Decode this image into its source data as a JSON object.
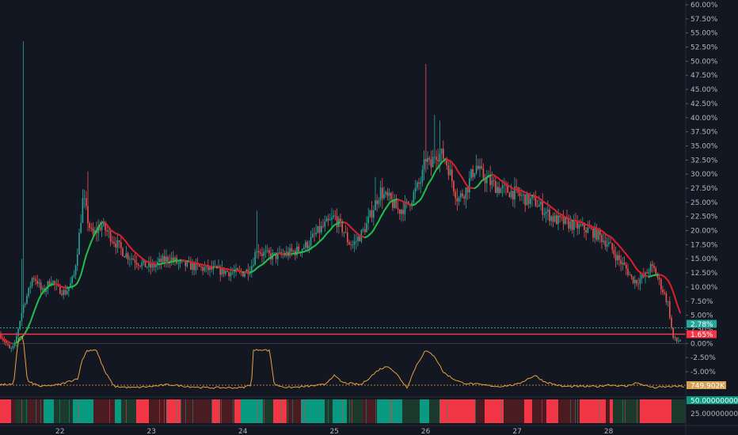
{
  "chart_data": {
    "type": "candlestick",
    "y_axis": {
      "unit": "%",
      "ticks": [
        "60.00%",
        "57.50%",
        "55.00%",
        "52.50%",
        "50.00%",
        "47.50%",
        "45.00%",
        "42.50%",
        "40.00%",
        "37.50%",
        "35.00%",
        "32.50%",
        "30.00%",
        "27.50%",
        "25.00%",
        "22.50%",
        "20.00%",
        "17.50%",
        "15.00%",
        "12.50%",
        "10.00%",
        "7.50%",
        "5.00%",
        "2.50%",
        "0.00%",
        "-2.50%",
        "-5.00%"
      ],
      "ylim": [
        -5,
        60
      ]
    },
    "x_axis": {
      "ticks": [
        "22",
        "23",
        "24",
        "25",
        "26",
        "27",
        "28"
      ],
      "xlim": [
        21.35,
        28.85
      ]
    },
    "price_path": [
      [
        21.35,
        1.5
      ],
      [
        21.4,
        0.2
      ],
      [
        21.45,
        -1.2
      ],
      [
        21.5,
        -0.5
      ],
      [
        21.55,
        3.5
      ],
      [
        21.6,
        7
      ],
      [
        21.65,
        9
      ],
      [
        21.7,
        12
      ],
      [
        21.75,
        11
      ],
      [
        21.8,
        9
      ],
      [
        21.85,
        10
      ],
      [
        21.9,
        11.5
      ],
      [
        21.95,
        10
      ],
      [
        22.0,
        9.5
      ],
      [
        22.05,
        9
      ],
      [
        22.1,
        10
      ],
      [
        22.15,
        12
      ],
      [
        22.2,
        18
      ],
      [
        22.25,
        26
      ],
      [
        22.3,
        22
      ],
      [
        22.35,
        19
      ],
      [
        22.4,
        20
      ],
      [
        22.45,
        21
      ],
      [
        22.5,
        20
      ],
      [
        22.55,
        19
      ],
      [
        22.6,
        18
      ],
      [
        22.7,
        16
      ],
      [
        22.8,
        15
      ],
      [
        22.9,
        14
      ],
      [
        23.0,
        13.5
      ],
      [
        23.1,
        14.5
      ],
      [
        23.2,
        15.2
      ],
      [
        23.3,
        14
      ],
      [
        23.4,
        13.8
      ],
      [
        23.5,
        13.5
      ],
      [
        23.6,
        13.2
      ],
      [
        23.7,
        13
      ],
      [
        23.8,
        12.8
      ],
      [
        23.9,
        12.5
      ],
      [
        24.0,
        12.5
      ],
      [
        24.05,
        13
      ],
      [
        24.1,
        14
      ],
      [
        24.15,
        17
      ],
      [
        24.2,
        16
      ],
      [
        24.3,
        15.5
      ],
      [
        24.4,
        15.5
      ],
      [
        24.5,
        16
      ],
      [
        24.6,
        16.5
      ],
      [
        24.7,
        17.5
      ],
      [
        24.8,
        19.5
      ],
      [
        24.9,
        21
      ],
      [
        24.95,
        21.5
      ],
      [
        25.0,
        22.5
      ],
      [
        25.05,
        21
      ],
      [
        25.1,
        20
      ],
      [
        25.15,
        18
      ],
      [
        25.2,
        17.5
      ],
      [
        25.25,
        18.5
      ],
      [
        25.3,
        19.5
      ],
      [
        25.35,
        21
      ],
      [
        25.4,
        23
      ],
      [
        25.45,
        25
      ],
      [
        25.5,
        27
      ],
      [
        25.55,
        26
      ],
      [
        25.6,
        25.5
      ],
      [
        25.65,
        24.5
      ],
      [
        25.7,
        23.5
      ],
      [
        25.75,
        24
      ],
      [
        25.8,
        24.5
      ],
      [
        25.85,
        26
      ],
      [
        25.9,
        27.5
      ],
      [
        25.95,
        29
      ],
      [
        26.0,
        33
      ],
      [
        26.05,
        31
      ],
      [
        26.1,
        34
      ],
      [
        26.15,
        33.5
      ],
      [
        26.2,
        33
      ],
      [
        26.25,
        31
      ],
      [
        26.3,
        28
      ],
      [
        26.35,
        25.5
      ],
      [
        26.4,
        26.5
      ],
      [
        26.45,
        27.5
      ],
      [
        26.5,
        30
      ],
      [
        26.55,
        31.5
      ],
      [
        26.6,
        30
      ],
      [
        26.7,
        28.5
      ],
      [
        26.8,
        27.5
      ],
      [
        26.9,
        27
      ],
      [
        27.0,
        26.5
      ],
      [
        27.1,
        25.5
      ],
      [
        27.2,
        25
      ],
      [
        27.3,
        23.5
      ],
      [
        27.4,
        22
      ],
      [
        27.5,
        21.5
      ],
      [
        27.6,
        21
      ],
      [
        27.7,
        20.5
      ],
      [
        27.8,
        20
      ],
      [
        27.9,
        19
      ],
      [
        28.0,
        17.5
      ],
      [
        28.1,
        15
      ],
      [
        28.2,
        13
      ],
      [
        28.25,
        11.5
      ],
      [
        28.3,
        11
      ],
      [
        28.4,
        12
      ],
      [
        28.45,
        13.5
      ],
      [
        28.5,
        13
      ],
      [
        28.55,
        11
      ],
      [
        28.6,
        9
      ],
      [
        28.65,
        7
      ],
      [
        28.7,
        1
      ],
      [
        28.75,
        0.3
      ],
      [
        28.8,
        1
      ],
      [
        28.85,
        2.78
      ]
    ],
    "spikes": [
      [
        21.6,
        53.5
      ],
      [
        21.58,
        15
      ],
      [
        22.3,
        30.5
      ],
      [
        24.15,
        23.5
      ],
      [
        25.45,
        29.5
      ],
      [
        26.0,
        49.5
      ],
      [
        26.1,
        40.5
      ],
      [
        26.15,
        39.5
      ]
    ],
    "price_levels": [
      {
        "value": 2.78,
        "label": "2.78%",
        "color": "#26a69a"
      },
      {
        "value": 1.65,
        "label": "1.65%",
        "color": "#f23645"
      }
    ],
    "oscillator": {
      "current_label": "749.902K",
      "path": [
        [
          21.35,
          0.15
        ],
        [
          21.5,
          0.15
        ],
        [
          21.55,
          0.9
        ],
        [
          21.6,
          0.95
        ],
        [
          21.65,
          0.2
        ],
        [
          21.8,
          0.12
        ],
        [
          22.0,
          0.15
        ],
        [
          22.2,
          0.25
        ],
        [
          22.25,
          0.55
        ],
        [
          22.3,
          0.7
        ],
        [
          22.4,
          0.72
        ],
        [
          22.5,
          0.35
        ],
        [
          22.6,
          0.12
        ],
        [
          22.8,
          0.1
        ],
        [
          23.0,
          0.12
        ],
        [
          23.2,
          0.15
        ],
        [
          23.4,
          0.12
        ],
        [
          23.6,
          0.1
        ],
        [
          23.8,
          0.1
        ],
        [
          24.0,
          0.1
        ],
        [
          24.1,
          0.15
        ],
        [
          24.12,
          0.7
        ],
        [
          24.2,
          0.72
        ],
        [
          24.3,
          0.7
        ],
        [
          24.35,
          0.15
        ],
        [
          24.5,
          0.1
        ],
        [
          24.7,
          0.12
        ],
        [
          24.9,
          0.15
        ],
        [
          25.0,
          0.3
        ],
        [
          25.1,
          0.18
        ],
        [
          25.3,
          0.15
        ],
        [
          25.5,
          0.4
        ],
        [
          25.6,
          0.45
        ],
        [
          25.7,
          0.3
        ],
        [
          25.8,
          0.1
        ],
        [
          25.9,
          0.45
        ],
        [
          26.0,
          0.7
        ],
        [
          26.1,
          0.62
        ],
        [
          26.2,
          0.35
        ],
        [
          26.3,
          0.25
        ],
        [
          26.4,
          0.18
        ],
        [
          26.6,
          0.15
        ],
        [
          26.8,
          0.12
        ],
        [
          27.0,
          0.15
        ],
        [
          27.2,
          0.3
        ],
        [
          27.3,
          0.2
        ],
        [
          27.5,
          0.12
        ],
        [
          27.7,
          0.12
        ],
        [
          27.9,
          0.12
        ],
        [
          28.0,
          0.15
        ],
        [
          28.2,
          0.12
        ],
        [
          28.3,
          0.18
        ],
        [
          28.5,
          0.1
        ],
        [
          28.7,
          0.12
        ],
        [
          28.85,
          0.12
        ]
      ]
    },
    "bottom_indicator": {
      "tick_labels": [
        "50.00000000",
        "25.00000000"
      ],
      "colors": {
        "strong_up": "#089981",
        "strong_down": "#f23645",
        "dim_up": "#1b3a2b",
        "dim_down": "#4a1c22"
      }
    },
    "colors": {
      "up": "#26a69a",
      "down": "#ef5350",
      "ma_up": "#1fbf4a",
      "ma_down": "#d81f2d",
      "oscillator": "#e8a13c",
      "background": "#131722",
      "grid": "#2a2e39"
    }
  }
}
